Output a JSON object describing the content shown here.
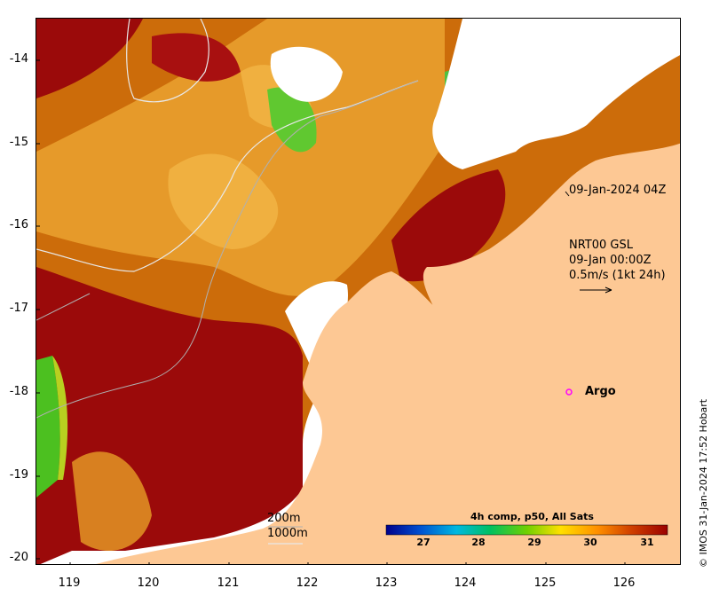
{
  "axes": {
    "x_ticks": [
      "119",
      "120",
      "121",
      "122",
      "123",
      "124",
      "125",
      "126"
    ],
    "y_ticks": [
      "-14",
      "-15",
      "-16",
      "-17",
      "-18",
      "-19",
      "-20"
    ],
    "lon_range": [
      118.6,
      126.65
    ],
    "lat_range": [
      -13.5,
      -20.1
    ]
  },
  "annotations": {
    "image_time": "09-Jan-2024 04Z",
    "current_source": "NRT00 GSL",
    "current_time": "09-Jan 00:00Z",
    "scale_vector": "0.5m/s (1kt 24h)",
    "argo_label": "Argo",
    "isobath_200": "200m",
    "isobath_1000": "1000m"
  },
  "colorbar": {
    "title": "4h comp, p50, All Sats",
    "labels": [
      "27",
      "28",
      "29",
      "30",
      "31"
    ],
    "range": [
      26.6,
      31.5
    ],
    "colors": [
      "#00008b",
      "#0050d0",
      "#00b8e0",
      "#00c060",
      "#70d000",
      "#ffe000",
      "#ff9000",
      "#d04000",
      "#9b0000"
    ]
  },
  "map_colors": {
    "land": "#fdc894",
    "cloud": "#ffffff",
    "sst_hot": "#9b0a0a",
    "sst_warm": "#d07000",
    "sst_mid": "#e89a20",
    "sst_cool": "#40c020",
    "argo_marker": "#ff00ff"
  },
  "credit": "© IMOS 31-Jan-2024 17:52 Hobart"
}
